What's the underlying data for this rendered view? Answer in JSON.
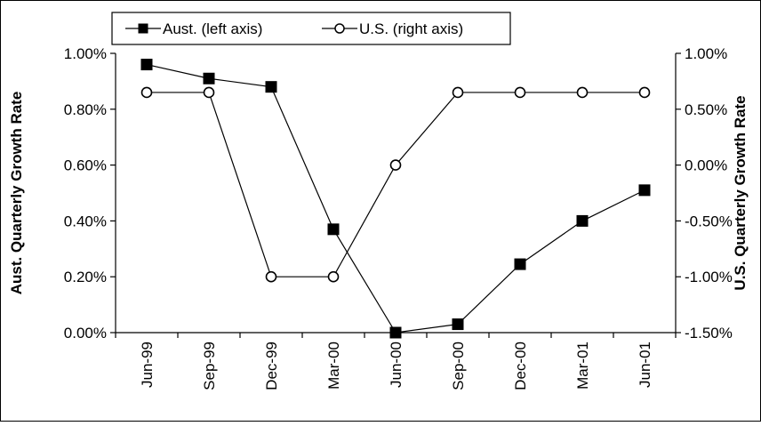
{
  "chart_data": {
    "type": "line",
    "categories": [
      "Jun-99",
      "Sep-99",
      "Dec-99",
      "Mar-00",
      "Jun-00",
      "Sep-00",
      "Dec-00",
      "Mar-01",
      "Jun-01"
    ],
    "series": [
      {
        "name": "Aust. (left axis)",
        "axis": "left",
        "marker": "filled-square",
        "values": [
          0.0096,
          0.0091,
          0.0088,
          0.0037,
          0.0,
          0.0003,
          0.00245,
          0.004,
          0.0051
        ]
      },
      {
        "name": "U.S. (right axis)",
        "axis": "right",
        "marker": "open-circle",
        "values": [
          0.0065,
          0.0065,
          -0.01,
          -0.01,
          0.0,
          0.0065,
          0.0065,
          0.0065,
          0.0065
        ]
      }
    ],
    "ylabel": "Aust. Quarterly Growth Rate",
    "y2label": "U.S. Quarterly Growth Rate",
    "xlabel": "",
    "ylim": [
      0,
      0.01
    ],
    "y2lim": [
      -0.015,
      0.01
    ],
    "yticks": [
      {
        "value": 0.0,
        "label": "0.00%"
      },
      {
        "value": 0.002,
        "label": "0.20%"
      },
      {
        "value": 0.004,
        "label": "0.40%"
      },
      {
        "value": 0.006,
        "label": "0.60%"
      },
      {
        "value": 0.008,
        "label": "0.80%"
      },
      {
        "value": 0.01,
        "label": "1.00%"
      }
    ],
    "y2ticks": [
      {
        "value": -0.015,
        "label": "-1.50%"
      },
      {
        "value": -0.01,
        "label": "-1.00%"
      },
      {
        "value": -0.005,
        "label": "-0.50%"
      },
      {
        "value": 0.0,
        "label": "0.00%"
      },
      {
        "value": 0.005,
        "label": "0.50%"
      },
      {
        "value": 0.01,
        "label": "1.00%"
      }
    ],
    "grid": false,
    "legend_position": "top"
  }
}
